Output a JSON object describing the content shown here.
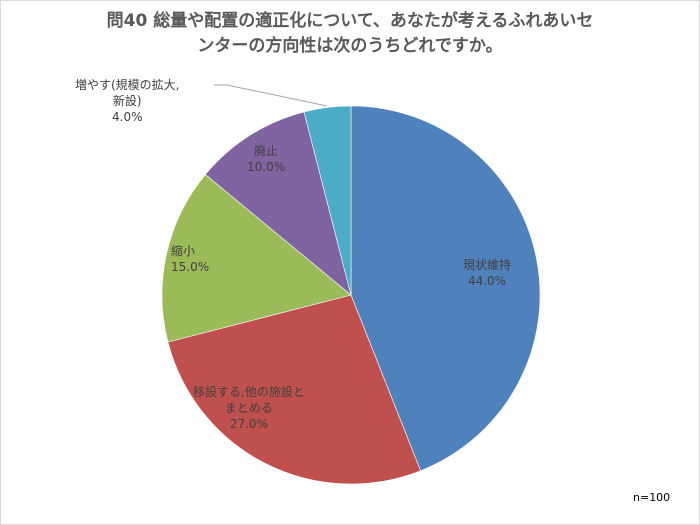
{
  "chart_data": {
    "type": "pie",
    "title_line1": "問40  総量や配置の適正化について、あなたが考えるふれあいセ",
    "title_line2": "ンターの方向性は次のうちどれですか。",
    "start_angle_deg": 0,
    "direction": "clockwise",
    "slices": [
      {
        "label": "現状維持",
        "value": 44.0,
        "pct_text": "44.0%",
        "color": "#4f81bd"
      },
      {
        "label": "移設する,他の施設とまとめる",
        "label_line1": "移設する,他の施設と",
        "label_line2": "まとめる",
        "value": 27.0,
        "pct_text": "27.0%",
        "color": "#c0504d"
      },
      {
        "label": "縮小",
        "value": 15.0,
        "pct_text": "15.0%",
        "color": "#9bbb59"
      },
      {
        "label": "廃止",
        "value": 10.0,
        "pct_text": "10.0%",
        "color": "#8064a2"
      },
      {
        "label": "増やす(規模の拡大,新設)",
        "label_line1": "増やす(規模の拡大,",
        "label_line2": "新設)",
        "value": 4.0,
        "pct_text": "4.0%",
        "color": "#4bacc6"
      }
    ],
    "annotation": "n=100",
    "legend": "none"
  }
}
